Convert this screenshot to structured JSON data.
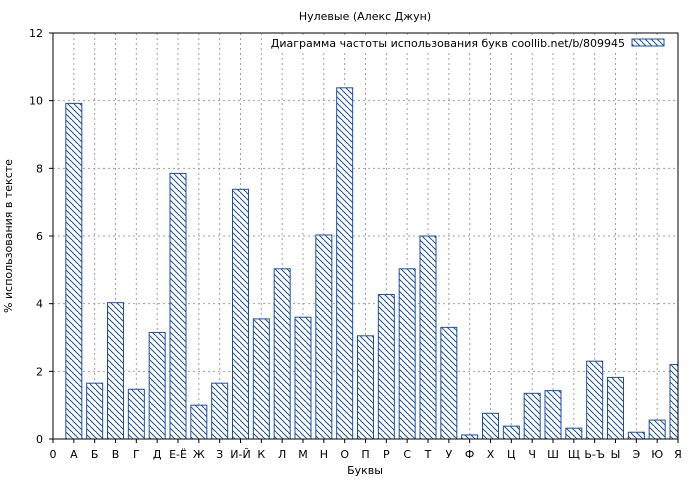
{
  "chart_data": {
    "type": "bar",
    "title": "Нулевые (Алекс Джун)",
    "xlabel": "Буквы",
    "ylabel": "% использования в тексте",
    "ylim": [
      0,
      12
    ],
    "yticks": [
      0,
      2,
      4,
      6,
      8,
      10,
      12
    ],
    "grid": true,
    "legend_position": "top-right",
    "bar_color": "#1a4fa3",
    "categories": [
      "0",
      "А",
      "Б",
      "В",
      "Г",
      "Д",
      "Е-Ё",
      "Ж",
      "З",
      "И-Й",
      "К",
      "Л",
      "М",
      "Н",
      "О",
      "П",
      "Р",
      "С",
      "Т",
      "У",
      "Ф",
      "Х",
      "Ц",
      "Ч",
      "Ш",
      "Щ",
      "Ь-Ъ",
      "Ы",
      "Э",
      "Ю",
      "Я"
    ],
    "series": [
      {
        "name": "Диаграмма частоты использования букв coollib.net/b/809945",
        "values": [
          0,
          9.92,
          1.65,
          4.03,
          1.47,
          3.15,
          7.85,
          1.0,
          1.65,
          7.38,
          3.55,
          5.03,
          3.6,
          6.03,
          10.38,
          3.05,
          4.27,
          5.03,
          6.0,
          3.3,
          0.12,
          0.76,
          0.38,
          1.35,
          1.43,
          0.32,
          2.3,
          1.82,
          0.2,
          0.56,
          2.2
        ]
      }
    ]
  }
}
